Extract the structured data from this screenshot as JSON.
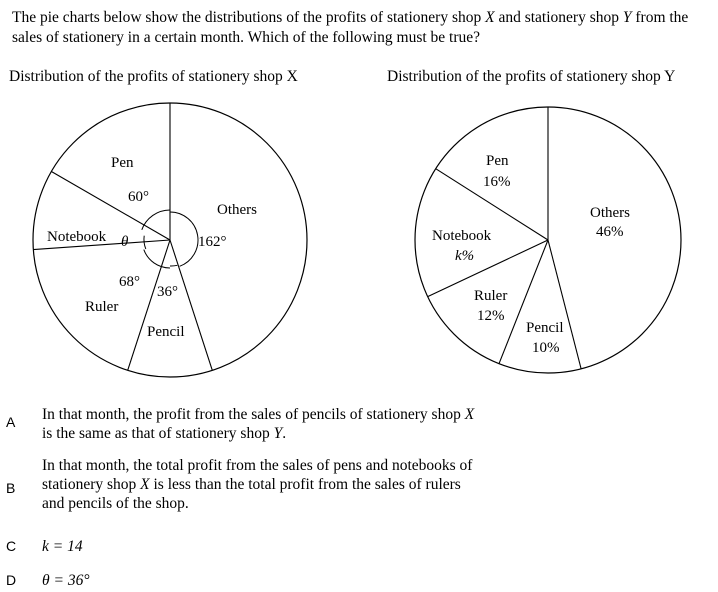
{
  "question": {
    "text_1": "The pie charts below show the distributions of the profits of stationery shop ",
    "var_x": "X",
    "text_2": " and stationery shop ",
    "var_y": "Y",
    "text_3": " from the sales of stationery in a certain month.  Which of the following must be true?"
  },
  "chart_titles": {
    "x": "Distribution of the profits of stationery shop X",
    "y": "Distribution of the profits of stationery shop Y"
  },
  "chart_data": [
    {
      "type": "pie",
      "title": "Distribution of the profits of stationery shop X",
      "categories": [
        "Others",
        "Pencil",
        "Ruler",
        "Notebook",
        "Pen"
      ],
      "angle_labels": [
        "162°",
        "36°",
        "68°",
        "θ",
        "60°"
      ],
      "values_degrees": [
        162,
        36,
        68,
        34,
        60
      ]
    },
    {
      "type": "pie",
      "title": "Distribution of the profits of stationery shop Y",
      "categories": [
        "Others",
        "Pencil",
        "Ruler",
        "Notebook",
        "Pen"
      ],
      "value_labels": [
        "46%",
        "10%",
        "12%",
        "k%",
        "16%"
      ],
      "values_percent": [
        46,
        10,
        12,
        16,
        16
      ]
    }
  ],
  "options": [
    {
      "letter": "A",
      "line_1a": "In that month, the profit from the sales of pencils of stationery shop ",
      "line_1v": "X",
      "line_2a": "is the same as that of stationery shop ",
      "line_2v": "Y",
      "line_2b": "."
    },
    {
      "letter": "B",
      "line_1": "In that month, the total profit from the sales of pens and notebooks of",
      "line_2a": "stationery shop ",
      "line_2v": "X",
      "line_2b": " is less than the total profit from the sales of rulers",
      "line_3": "and pencils of the shop."
    },
    {
      "letter": "C",
      "text": "k = 14"
    },
    {
      "letter": "D",
      "text": "θ = 36°"
    }
  ]
}
